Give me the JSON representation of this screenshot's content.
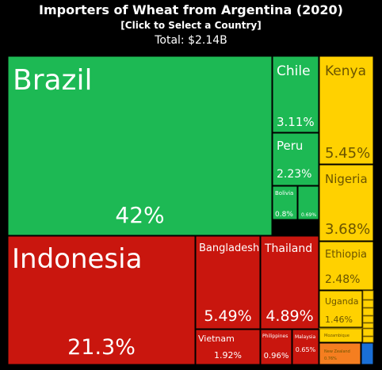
{
  "header": {
    "title": "Importers of Wheat from Argentina (2020)",
    "subtitle": "[Click to Select a Country]",
    "total": "Total: $2.14B"
  },
  "colors": {
    "south_america": "#1db954",
    "asia": "#c9160e",
    "africa": "#ffd100",
    "other": "#f57e20",
    "blue": "#1a6fd6"
  },
  "chart_data": {
    "type": "treemap",
    "title": "Importers of Wheat from Argentina (2020)",
    "subtitle": "[Click to Select a Country]",
    "total": "Total: $2.14B",
    "unit": "% of total export value",
    "items": [
      {
        "label": "Brazil",
        "value": 42,
        "value_label": "42%",
        "group": "south_america"
      },
      {
        "label": "Chile",
        "value": 3.11,
        "value_label": "3.11%",
        "group": "south_america"
      },
      {
        "label": "Peru",
        "value": 2.23,
        "value_label": "2.23%",
        "group": "south_america"
      },
      {
        "label": "Bolivia",
        "value": 0.8,
        "value_label": "0.8%",
        "group": "south_america"
      },
      {
        "label": "",
        "value": 0.69,
        "value_label": "0.69%",
        "group": "south_america"
      },
      {
        "label": "Indonesia",
        "value": 21.3,
        "value_label": "21.3%",
        "group": "asia"
      },
      {
        "label": "Bangladesh",
        "value": 5.49,
        "value_label": "5.49%",
        "group": "asia"
      },
      {
        "label": "Thailand",
        "value": 4.89,
        "value_label": "4.89%",
        "group": "asia"
      },
      {
        "label": "Vietnam",
        "value": 1.92,
        "value_label": "1.92%",
        "group": "asia"
      },
      {
        "label": "Philippines",
        "value": 0.96,
        "value_label": "0.96%",
        "group": "asia"
      },
      {
        "label": "Malaysia",
        "value": 0.65,
        "value_label": "0.65%",
        "group": "asia"
      },
      {
        "label": "Kenya",
        "value": 5.45,
        "value_label": "5.45%",
        "group": "africa"
      },
      {
        "label": "Nigeria",
        "value": 3.68,
        "value_label": "3.68%",
        "group": "africa"
      },
      {
        "label": "Ethiopia",
        "value": 2.48,
        "value_label": "2.48%",
        "group": "africa"
      },
      {
        "label": "Uganda",
        "value": 1.46,
        "value_label": "1.46%",
        "group": "africa"
      },
      {
        "label": "Mozambique",
        "value": null,
        "value_label": "",
        "group": "africa"
      },
      {
        "label": "New Zealand",
        "value": 0.76,
        "value_label": "0.76%",
        "group": "other"
      },
      {
        "label": "",
        "value": null,
        "value_label": "",
        "group": "blue"
      }
    ]
  }
}
